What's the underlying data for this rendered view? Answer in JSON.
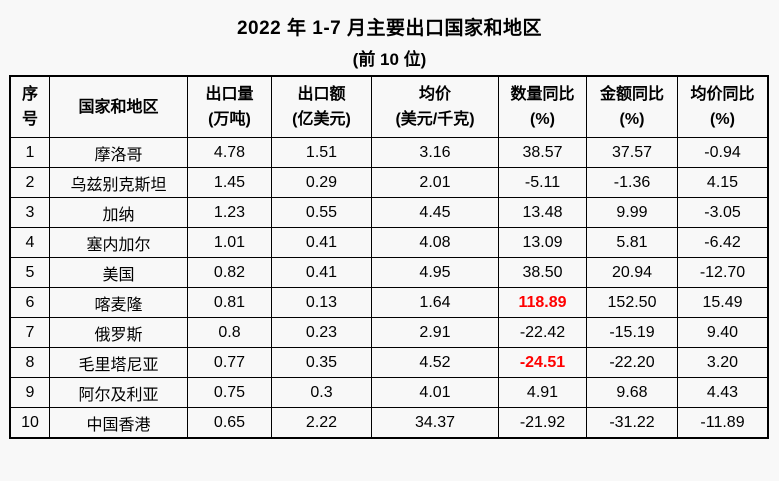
{
  "page": {
    "background_color": "#f8f8f8",
    "text_color": "#000000",
    "highlight_color": "#ff0000"
  },
  "title": "2022 年 1-7 月主要出口国家和地区",
  "subtitle": "(前 10 位)",
  "table": {
    "columns": [
      {
        "key": "no",
        "line1": "序",
        "line2": "号"
      },
      {
        "key": "name",
        "line1": "国家和地区",
        "line2": ""
      },
      {
        "key": "volume",
        "line1": "出口量",
        "line2": "(万吨)"
      },
      {
        "key": "value",
        "line1": "出口额",
        "line2": "(亿美元)"
      },
      {
        "key": "price",
        "line1": "均价",
        "line2": "(美元/千克)"
      },
      {
        "key": "qty_yoy",
        "line1": "数量同比",
        "line2": "(%)"
      },
      {
        "key": "amt_yoy",
        "line1": "金额同比",
        "line2": "(%)"
      },
      {
        "key": "price_yoy",
        "line1": "均价同比",
        "line2": "(%)"
      }
    ],
    "rows": [
      {
        "no": "1",
        "name": "摩洛哥",
        "volume": "4.78",
        "value": "1.51",
        "price": "3.16",
        "qty_yoy": "38.57",
        "amt_yoy": "37.57",
        "price_yoy": "-0.94",
        "red": []
      },
      {
        "no": "2",
        "name": "乌兹别克斯坦",
        "volume": "1.45",
        "value": "0.29",
        "price": "2.01",
        "qty_yoy": "-5.11",
        "amt_yoy": "-1.36",
        "price_yoy": "4.15",
        "red": []
      },
      {
        "no": "3",
        "name": "加纳",
        "volume": "1.23",
        "value": "0.55",
        "price": "4.45",
        "qty_yoy": "13.48",
        "amt_yoy": "9.99",
        "price_yoy": "-3.05",
        "red": []
      },
      {
        "no": "4",
        "name": "塞内加尔",
        "volume": "1.01",
        "value": "0.41",
        "price": "4.08",
        "qty_yoy": "13.09",
        "amt_yoy": "5.81",
        "price_yoy": "-6.42",
        "red": []
      },
      {
        "no": "5",
        "name": "美国",
        "volume": "0.82",
        "value": "0.41",
        "price": "4.95",
        "qty_yoy": "38.50",
        "amt_yoy": "20.94",
        "price_yoy": "-12.70",
        "red": []
      },
      {
        "no": "6",
        "name": "喀麦隆",
        "volume": "0.81",
        "value": "0.13",
        "price": "1.64",
        "qty_yoy": "118.89",
        "amt_yoy": "152.50",
        "price_yoy": "15.49",
        "red": [
          "qty_yoy"
        ]
      },
      {
        "no": "7",
        "name": "俄罗斯",
        "volume": "0.8",
        "value": "0.23",
        "price": "2.91",
        "qty_yoy": "-22.42",
        "amt_yoy": "-15.19",
        "price_yoy": "9.40",
        "red": []
      },
      {
        "no": "8",
        "name": "毛里塔尼亚",
        "volume": "0.77",
        "value": "0.35",
        "price": "4.52",
        "qty_yoy": "-24.51",
        "amt_yoy": "-22.20",
        "price_yoy": "3.20",
        "red": [
          "qty_yoy"
        ]
      },
      {
        "no": "9",
        "name": "阿尔及利亚",
        "volume": "0.75",
        "value": "0.3",
        "price": "4.01",
        "qty_yoy": "4.91",
        "amt_yoy": "9.68",
        "price_yoy": "4.43",
        "red": []
      },
      {
        "no": "10",
        "name": "中国香港",
        "volume": "0.65",
        "value": "2.22",
        "price": "34.37",
        "qty_yoy": "-21.92",
        "amt_yoy": "-31.22",
        "price_yoy": "-11.89",
        "red": []
      }
    ]
  }
}
